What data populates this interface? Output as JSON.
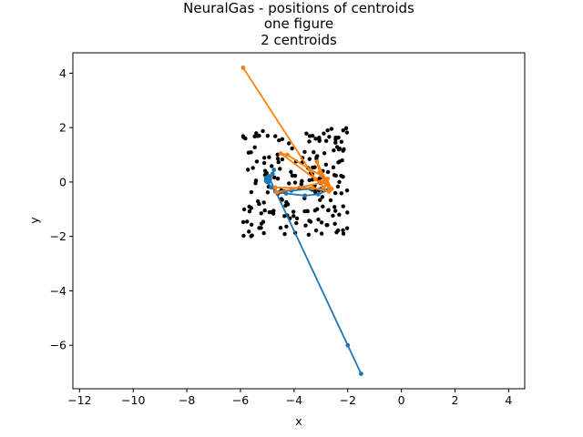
{
  "chart_data": {
    "type": "scatter",
    "title_lines": [
      "NeuralGas - positions of centroids",
      "one figure",
      "2 centroids"
    ],
    "xlabel": "x",
    "ylabel": "y",
    "xlim": [
      -12.25,
      4.6
    ],
    "ylim": [
      -7.6,
      4.75
    ],
    "xticks": [
      -12,
      -10,
      -8,
      -6,
      -4,
      -2,
      0,
      2,
      4
    ],
    "xtick_labels": [
      "−12",
      "−10",
      "−8",
      "−6",
      "−4",
      "−2",
      "0",
      "2",
      "4"
    ],
    "yticks": [
      -6,
      -4,
      -2,
      0,
      2,
      4
    ],
    "ytick_labels": [
      "−6",
      "−4",
      "−2",
      "0",
      "2",
      "4"
    ],
    "grid": false,
    "data_points": {
      "color": "#000000",
      "x_range": [
        -5.9,
        -2.0
      ],
      "y_range": [
        -2.0,
        2.0
      ],
      "count": 200
    },
    "series": [
      {
        "color": "#1f77b4",
        "points": [
          [
            -1.5,
            -7.05
          ],
          [
            -2.0,
            -6.0
          ],
          [
            -4.9,
            0.1
          ],
          [
            -4.75,
            0.45
          ],
          [
            -5.0,
            0.0
          ],
          [
            -4.7,
            -0.35
          ],
          [
            -4.1,
            -0.32
          ],
          [
            -3.4,
            -0.25
          ],
          [
            -3.0,
            -0.25
          ],
          [
            -2.75,
            -0.3
          ],
          [
            -3.1,
            -0.45
          ],
          [
            -3.6,
            -0.5
          ],
          [
            -4.3,
            -0.42
          ],
          [
            -4.6,
            -0.38
          ],
          [
            -4.85,
            -0.2
          ],
          [
            -5.05,
            0.05
          ],
          [
            -4.95,
            0.22
          ],
          [
            -4.8,
            0.3
          ],
          [
            -4.9,
            0.15
          ],
          [
            -5.0,
            0.1
          ],
          [
            -4.95,
            0.0
          ],
          [
            -5.05,
            0.15
          ],
          [
            -4.92,
            0.05
          ]
        ]
      },
      {
        "color": "#ff7f0e",
        "points": [
          [
            -5.9,
            4.2
          ],
          [
            -3.2,
            0.1
          ],
          [
            -4.5,
            1.05
          ],
          [
            -4.25,
            1.0
          ],
          [
            -3.4,
            0.45
          ],
          [
            -3.0,
            0.25
          ],
          [
            -2.7,
            -0.15
          ],
          [
            -2.6,
            -0.25
          ],
          [
            -2.85,
            0.05
          ],
          [
            -3.05,
            0.0
          ],
          [
            -2.9,
            -0.2
          ],
          [
            -2.75,
            -0.05
          ],
          [
            -3.15,
            0.75
          ],
          [
            -3.05,
            0.35
          ],
          [
            -2.85,
            0.0
          ],
          [
            -4.65,
            -0.38
          ],
          [
            -4.7,
            -0.2
          ],
          [
            -3.3,
            -0.22
          ],
          [
            -2.7,
            -0.35
          ],
          [
            -2.75,
            0.12
          ],
          [
            -2.8,
            -0.05
          ],
          [
            -2.9,
            0.0
          ],
          [
            -2.8,
            -0.1
          ],
          [
            -2.85,
            0.05
          ]
        ]
      }
    ]
  }
}
